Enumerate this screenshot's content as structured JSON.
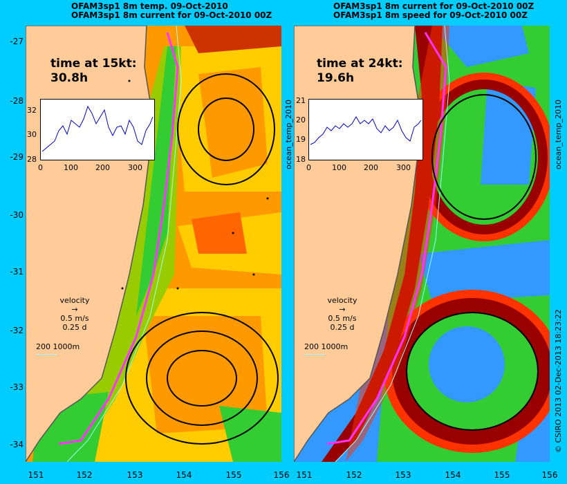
{
  "left_panel": {
    "title_line1": "OFAM3sp1 8m temp. 09-Oct-2010",
    "title_line2": "OFAM3sp1 8m current for 09-Oct-2010 00Z",
    "time_label": "time at 15kt:",
    "time_value": "30.8h",
    "inset_y_ticks": [
      "32",
      "30",
      "28"
    ],
    "inset_x_ticks": [
      "0",
      "100",
      "200",
      "300"
    ],
    "velocity_label": "velocity",
    "velocity_speed": "0.5 m/s",
    "velocity_days": "0.25 d",
    "depth_label": "200  1000m",
    "side_label": "ocean_temp_2010"
  },
  "right_panel": {
    "title_line1": "OFAM3sp1 8m current for 09-Oct-2010 00Z",
    "title_line2": "OFAM3sp1 8m speed for 09-Oct-2010 00Z",
    "time_label": "time at 24kt:",
    "time_value": "19.6h",
    "inset_y_ticks": [
      "21",
      "20",
      "19",
      "18"
    ],
    "inset_x_ticks": [
      "0",
      "100",
      "200",
      "300"
    ],
    "velocity_label": "velocity",
    "velocity_speed": "0.5 m/s",
    "velocity_days": "0.25 d",
    "depth_label": "200  1000m",
    "side_label": "ocean_temp_2010"
  },
  "y_axis_labels": [
    "-27",
    "-28",
    "-29",
    "-30",
    "-31",
    "-32",
    "-33",
    "-34"
  ],
  "x_axis_labels_left": [
    "151",
    "152",
    "153",
    "154",
    "155",
    "156"
  ],
  "x_axis_labels_right": [
    "151",
    "152",
    "153",
    "154",
    "155",
    "156"
  ],
  "credit": "© CSIRO 2013   02-Dec-2013 18:23:22",
  "colors": {
    "background": "#00ccff",
    "land": "#ffcc99",
    "coast": "#555555",
    "track": "#ff33ff",
    "shelf": "#99ffff",
    "temp_warm": "#ff9900",
    "temp_mid": "#ffcc00",
    "temp_cool": "#33cc33",
    "speed_high": "#990000",
    "speed_mid": "#ff3300",
    "speed_low": "#33cc33",
    "speed_min": "#3399ff"
  }
}
